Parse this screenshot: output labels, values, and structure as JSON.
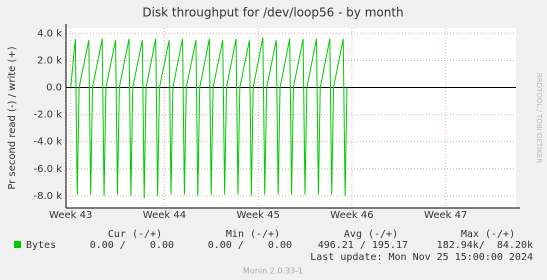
{
  "chart_data": {
    "type": "line",
    "title": "Disk throughput for /dev/loop56 - by month",
    "y_label": "Pr second read (-) / write (+)",
    "side_label": "RRDTOOL / TOBI OETIKER",
    "xlim": [
      42.95,
      47.75
    ],
    "xticks": [
      {
        "value": 43,
        "label": "Week 43"
      },
      {
        "value": 44,
        "label": "Week 44"
      },
      {
        "value": 45,
        "label": "Week 45"
      },
      {
        "value": 46,
        "label": "Week 46"
      },
      {
        "value": 47,
        "label": "Week 47"
      }
    ],
    "ylim": [
      -8900,
      4400
    ],
    "yticks": [
      {
        "value": 4000,
        "label": "4.0 k"
      },
      {
        "value": 2000,
        "label": "2.0 k"
      },
      {
        "value": 0,
        "label": "0.0"
      },
      {
        "value": -2000,
        "label": "-2.0 k"
      },
      {
        "value": -4000,
        "label": "-4.0 k"
      },
      {
        "value": -6000,
        "label": "-6.0 k"
      },
      {
        "value": -8000,
        "label": "-8.0 k"
      }
    ],
    "grid": true,
    "x": [
      43.0,
      43.05,
      43.07,
      43.09,
      43.193,
      43.213,
      43.233,
      43.336,
      43.356,
      43.376,
      43.479,
      43.499,
      43.519,
      43.622,
      43.642,
      43.662,
      43.764,
      43.784,
      43.804,
      43.907,
      43.927,
      43.947,
      44.05,
      44.07,
      44.09,
      44.193,
      44.213,
      44.233,
      44.336,
      44.356,
      44.376,
      44.479,
      44.499,
      44.519,
      44.622,
      44.642,
      44.662,
      44.764,
      44.784,
      44.804,
      44.907,
      44.927,
      44.947,
      45.05,
      45.07,
      45.09,
      45.193,
      45.213,
      45.233,
      45.336,
      45.356,
      45.376,
      45.479,
      45.499,
      45.519,
      45.622,
      45.642,
      45.662,
      45.764,
      45.784,
      45.804,
      45.907,
      45.927,
      45.947
    ],
    "series": [
      {
        "name": "Bytes",
        "color": "#00cc00",
        "values": [
          0,
          3600,
          -7900,
          0,
          3500,
          -7900,
          0,
          3600,
          -8000,
          0,
          3500,
          -7900,
          0,
          3600,
          -8000,
          0,
          3500,
          -8200,
          0,
          3600,
          -8000,
          0,
          3500,
          -7900,
          0,
          3600,
          -7900,
          0,
          3500,
          -8000,
          0,
          3600,
          -7900,
          0,
          3500,
          -7900,
          0,
          3600,
          -7900,
          0,
          3500,
          -8000,
          0,
          3700,
          -7900,
          0,
          3500,
          -7900,
          0,
          3600,
          -7900,
          0,
          3600,
          -7900,
          0,
          3600,
          -7900,
          0,
          3600,
          -7900,
          0,
          3600,
          -8000,
          0
        ]
      }
    ],
    "legend_table": {
      "headers": [
        "Cur (-/+)",
        "Min (-/+)",
        "Avg (-/+)",
        "Max (-/+)"
      ],
      "row": [
        "0.00 /    0.00",
        "0.00 /    0.00",
        "496.21 / 195.17",
        "182.94k/  84.20k"
      ]
    },
    "last_update": "Last update: Mon Nov 25 15:00:00 2024",
    "version": "Munin 2.0.33-1"
  }
}
